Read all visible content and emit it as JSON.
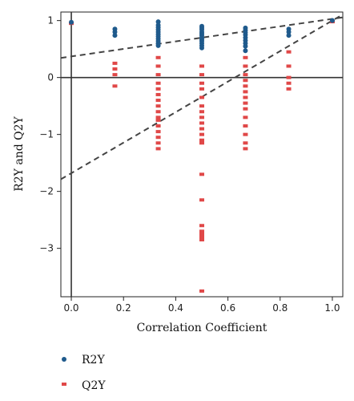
{
  "chart_data": {
    "type": "scatter",
    "title": "",
    "xlabel": "Correlation Coefficient",
    "ylabel": "R2Y and Q2Y",
    "xlim": [
      -0.04,
      1.04
    ],
    "ylim": [
      -3.85,
      1.15
    ],
    "x_ticks": [
      "0.0",
      "0.2",
      "0.4",
      "0.6",
      "0.8",
      "1.0"
    ],
    "y_ticks": [
      "1",
      "0",
      "−1",
      "−2",
      "−3"
    ],
    "x_tick_values": [
      0.0,
      0.2,
      0.4,
      0.6,
      0.8,
      1.0
    ],
    "y_tick_values": [
      1,
      0,
      -1,
      -2,
      -3
    ],
    "reference_lines": {
      "x": 0,
      "y": 0
    },
    "legend": {
      "position": "bottom-left"
    },
    "series": [
      {
        "name": "R2Y",
        "marker": "circle",
        "color": "#1f5a8c",
        "x": [
          0.0,
          0.167,
          0.167,
          0.167,
          0.333,
          0.333,
          0.333,
          0.333,
          0.333,
          0.333,
          0.333,
          0.333,
          0.333,
          0.333,
          0.333,
          0.5,
          0.5,
          0.5,
          0.5,
          0.5,
          0.5,
          0.5,
          0.5,
          0.5,
          0.5,
          0.5,
          0.5,
          0.667,
          0.667,
          0.667,
          0.667,
          0.667,
          0.667,
          0.667,
          0.667,
          0.667,
          0.833,
          0.833,
          0.833,
          1.0
        ],
        "y": [
          0.97,
          0.85,
          0.8,
          0.74,
          0.98,
          0.92,
          0.88,
          0.84,
          0.8,
          0.76,
          0.72,
          0.68,
          0.64,
          0.6,
          0.56,
          0.9,
          0.87,
          0.84,
          0.8,
          0.77,
          0.74,
          0.7,
          0.67,
          0.64,
          0.6,
          0.56,
          0.52,
          0.87,
          0.83,
          0.79,
          0.75,
          0.7,
          0.65,
          0.6,
          0.55,
          0.47,
          0.85,
          0.8,
          0.74,
          1.0
        ]
      },
      {
        "name": "Q2Y",
        "marker": "square",
        "color": "#e04848",
        "x": [
          0.0,
          0.167,
          0.167,
          0.167,
          0.167,
          0.333,
          0.333,
          0.333,
          0.333,
          0.333,
          0.333,
          0.333,
          0.333,
          0.333,
          0.333,
          0.333,
          0.333,
          0.333,
          0.333,
          0.333,
          0.333,
          0.5,
          0.5,
          0.5,
          0.5,
          0.5,
          0.5,
          0.5,
          0.5,
          0.5,
          0.5,
          0.5,
          0.5,
          0.5,
          0.5,
          0.5,
          0.5,
          0.5,
          0.5,
          0.5,
          0.5,
          0.5,
          0.5,
          0.667,
          0.667,
          0.667,
          0.667,
          0.667,
          0.667,
          0.667,
          0.667,
          0.667,
          0.667,
          0.667,
          0.667,
          0.667,
          0.667,
          0.833,
          0.833,
          0.833,
          0.833,
          0.833,
          1.0
        ],
        "y": [
          0.95,
          0.25,
          0.15,
          0.05,
          -0.15,
          0.35,
          0.2,
          0.05,
          -0.1,
          -0.2,
          -0.3,
          -0.4,
          -0.5,
          -0.6,
          -0.7,
          -0.75,
          -0.85,
          -0.95,
          -1.05,
          -1.15,
          -1.25,
          0.2,
          0.05,
          -0.1,
          -0.2,
          -0.35,
          -0.5,
          -0.6,
          -0.7,
          -0.8,
          -0.9,
          -1.0,
          -1.1,
          -1.15,
          -1.7,
          -2.15,
          -2.6,
          -2.7,
          -2.75,
          -2.8,
          -2.82,
          -2.85,
          -3.75,
          0.35,
          0.2,
          0.05,
          -0.05,
          -0.15,
          -0.25,
          -0.35,
          -0.45,
          -0.55,
          -0.7,
          -0.85,
          -1.0,
          -1.15,
          -1.25,
          0.45,
          0.2,
          0.0,
          -0.1,
          -0.2,
          0.98
        ]
      }
    ],
    "trend_lines": [
      {
        "series": "R2Y",
        "style": "dashed",
        "color": "#444444",
        "intercept": 0.37,
        "slope": 0.66
      },
      {
        "series": "Q2Y",
        "style": "dashed",
        "color": "#444444",
        "intercept": -1.68,
        "slope": 2.68
      }
    ]
  }
}
